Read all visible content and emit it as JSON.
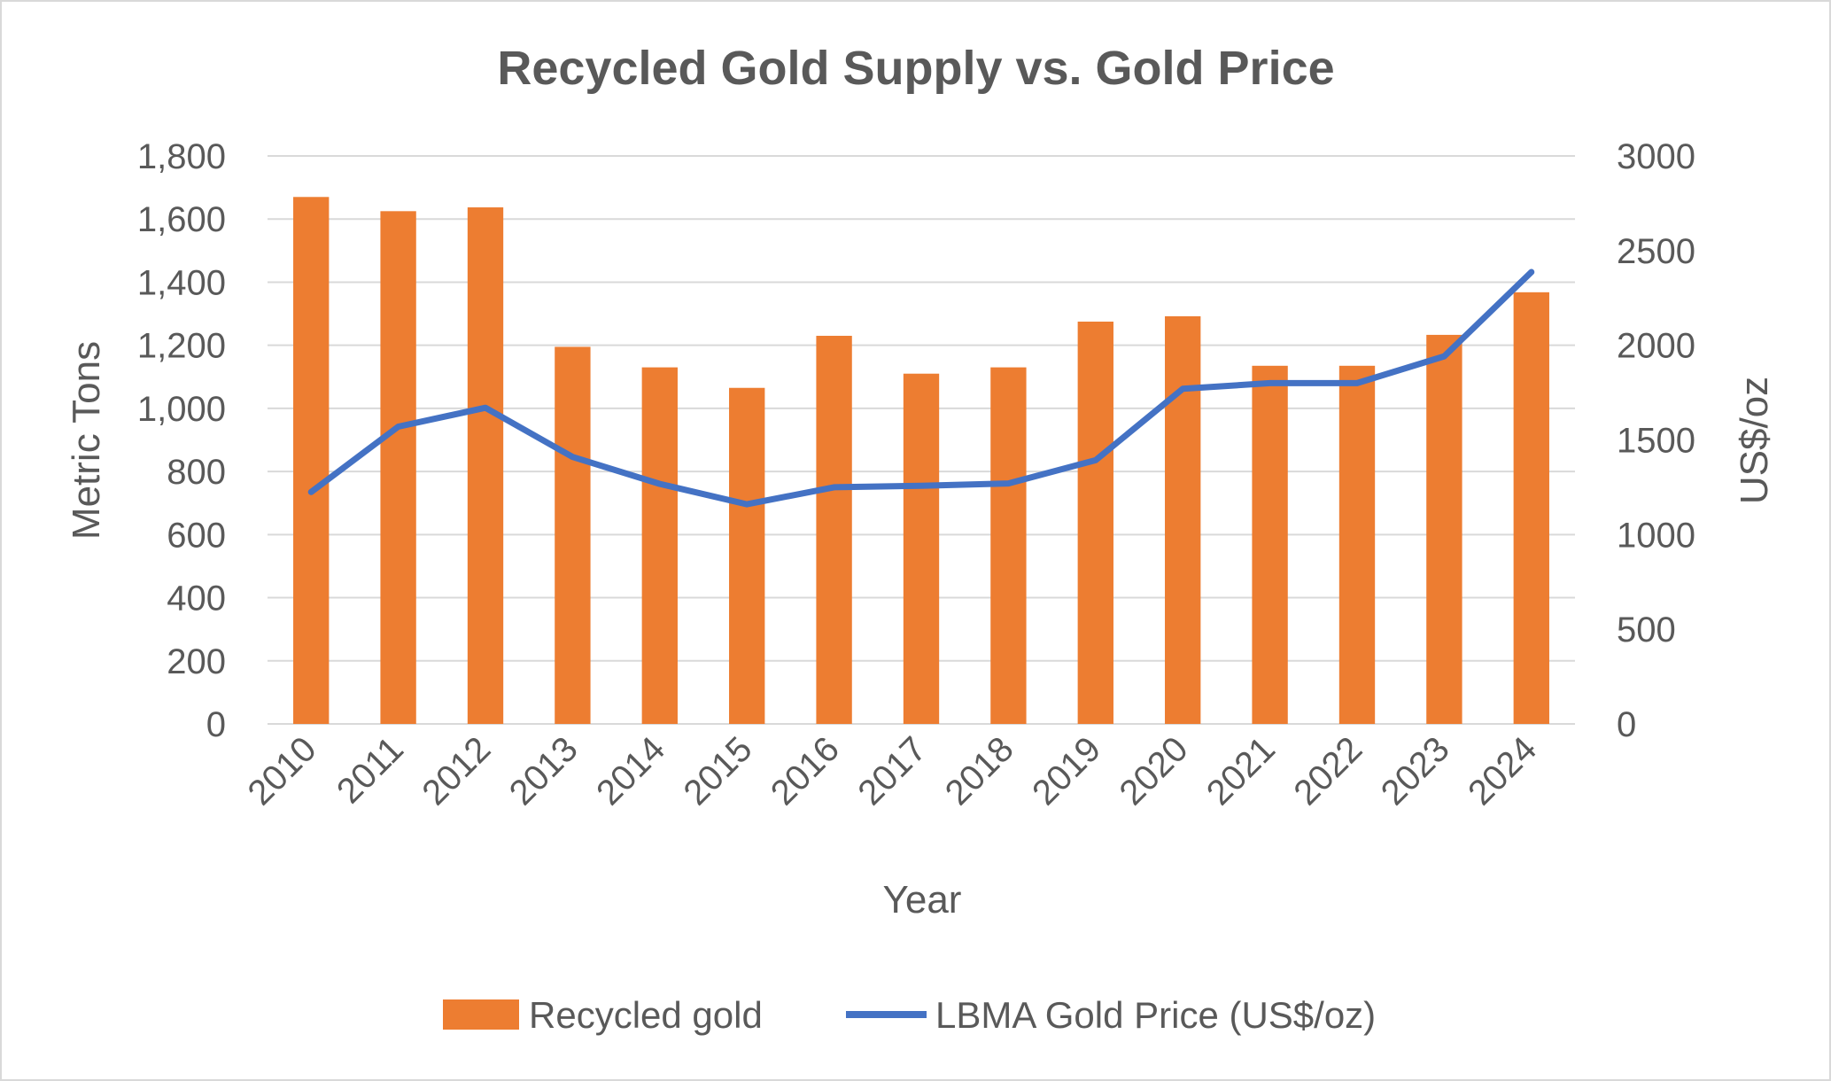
{
  "chart_data": {
    "type": "bar+line",
    "title": "Recycled Gold Supply vs. Gold Price",
    "xlabel": "Year",
    "ylabel": "Metric Tons",
    "y2label": "US$/oz",
    "categories": [
      "2010",
      "2011",
      "2012",
      "2013",
      "2014",
      "2015",
      "2016",
      "2017",
      "2018",
      "2019",
      "2020",
      "2021",
      "2022",
      "2023",
      "2024"
    ],
    "ylim": [
      0,
      1800
    ],
    "yticks": [
      0,
      200,
      400,
      600,
      800,
      1000,
      1200,
      1400,
      1600,
      1800
    ],
    "ytick_labels": [
      "0",
      "200",
      "400",
      "600",
      "800",
      "1,000",
      "1,200",
      "1,400",
      "1,600",
      "1,800"
    ],
    "y2lim": [
      0,
      3000
    ],
    "y2ticks": [
      0,
      500,
      1000,
      1500,
      2000,
      2500,
      3000
    ],
    "y2tick_labels": [
      "0",
      "500",
      "1000",
      "1500",
      "2000",
      "2500",
      "3000"
    ],
    "grid": true,
    "legend_position": "bottom",
    "series": [
      {
        "name": "Recycled gold",
        "type": "bar",
        "axis": "left",
        "color": "#ED7D31",
        "values": [
          1670,
          1625,
          1637,
          1195,
          1130,
          1065,
          1230,
          1110,
          1130,
          1275,
          1292,
          1135,
          1135,
          1233,
          1368
        ]
      },
      {
        "name": "LBMA Gold Price (US$/oz)",
        "type": "line",
        "axis": "right",
        "color": "#4472C4",
        "values": [
          1225,
          1570,
          1670,
          1410,
          1268,
          1160,
          1250,
          1258,
          1270,
          1393,
          1770,
          1800,
          1800,
          1942,
          2387
        ]
      }
    ]
  }
}
